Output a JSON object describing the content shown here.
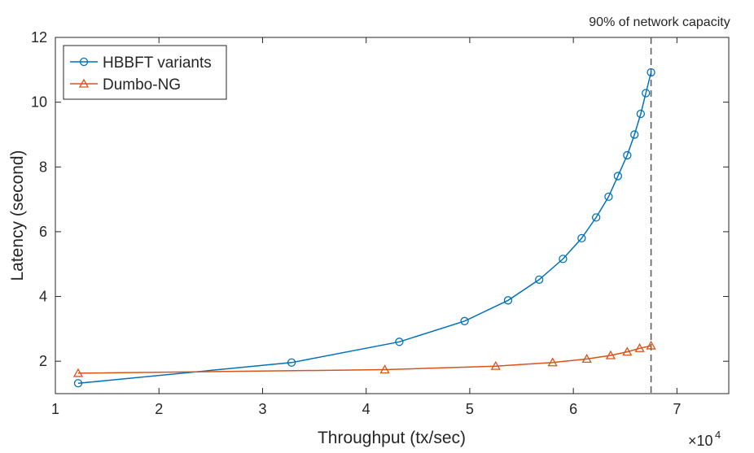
{
  "chart_data": {
    "type": "line",
    "title": "",
    "xlabel": "Throughput (tx/sec)",
    "ylabel": "Latency (second)",
    "x_multiplier_label": "×10",
    "x_multiplier_exp": "4",
    "xlim": [
      1,
      7.5
    ],
    "ylim": [
      1,
      12
    ],
    "xticks": [
      1,
      2,
      3,
      4,
      5,
      6,
      7
    ],
    "yticks": [
      2,
      4,
      6,
      8,
      10,
      12
    ],
    "grid": false,
    "legend_position": "top-left",
    "annotation": {
      "text": "90% of network capacity",
      "x": 6.75
    },
    "series": [
      {
        "name": "HBBFT variants",
        "color": "#0072BD",
        "marker": "circle",
        "x": [
          1.22,
          3.28,
          4.32,
          4.95,
          5.37,
          5.67,
          5.9,
          6.08,
          6.22,
          6.34,
          6.43,
          6.52,
          6.59,
          6.65,
          6.7,
          6.75
        ],
        "y": [
          1.32,
          1.96,
          2.6,
          3.24,
          3.88,
          4.52,
          5.16,
          5.8,
          6.44,
          7.08,
          7.72,
          8.36,
          9.0,
          9.64,
          10.28,
          10.92
        ]
      },
      {
        "name": "Dumbo-NG",
        "color": "#D95319",
        "marker": "triangle",
        "x": [
          1.22,
          4.18,
          5.25,
          5.8,
          6.13,
          6.36,
          6.52,
          6.64,
          6.75
        ],
        "y": [
          1.63,
          1.74,
          1.85,
          1.96,
          2.07,
          2.18,
          2.29,
          2.4,
          2.48
        ]
      }
    ]
  }
}
